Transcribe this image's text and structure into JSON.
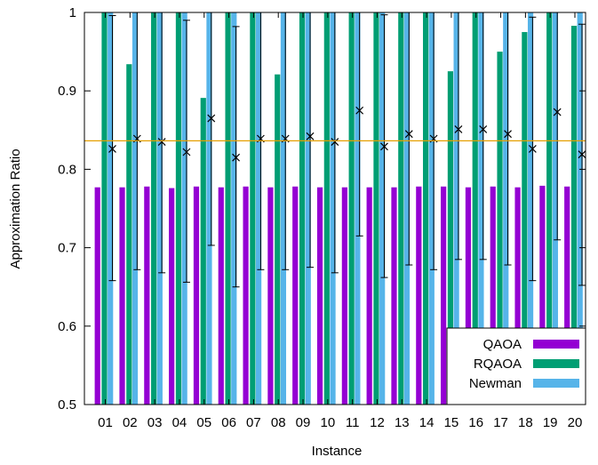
{
  "chart_data": {
    "type": "bar",
    "xlabel": "Instance",
    "ylabel": "Approximation Ratio",
    "ylim": [
      0.5,
      1.0
    ],
    "yticks": [
      "0.5",
      "0.6",
      "0.7",
      "0.8",
      "0.9",
      "1"
    ],
    "categories": [
      "01",
      "02",
      "03",
      "04",
      "05",
      "06",
      "07",
      "08",
      "09",
      "10",
      "11",
      "12",
      "13",
      "14",
      "15",
      "16",
      "17",
      "18",
      "19",
      "20"
    ],
    "series": [
      {
        "name": "QAOA",
        "color": "#9400d3",
        "values": [
          0.777,
          0.777,
          0.778,
          0.776,
          0.778,
          0.777,
          0.778,
          0.777,
          0.778,
          0.777,
          0.777,
          0.777,
          0.777,
          0.778,
          0.778,
          0.777,
          0.778,
          0.777,
          0.779,
          0.778
        ]
      },
      {
        "name": "RQAOA",
        "color": "#009e73",
        "values": [
          1.0,
          0.934,
          1.0,
          1.0,
          0.891,
          1.0,
          1.0,
          0.921,
          1.0,
          1.0,
          1.0,
          1.0,
          1.0,
          1.0,
          0.925,
          1.0,
          0.95,
          0.975,
          1.0,
          0.983
        ]
      },
      {
        "name": "Newman",
        "color": "#56b4e9",
        "values": [
          1.0,
          1.0,
          1.0,
          1.0,
          1.0,
          1.0,
          1.0,
          1.0,
          1.0,
          1.0,
          1.0,
          1.0,
          1.0,
          1.0,
          1.0,
          1.0,
          1.0,
          1.0,
          1.0,
          1.0
        ]
      }
    ],
    "errorbars": {
      "color": "#000000",
      "mean": [
        0.826,
        0.839,
        0.835,
        0.822,
        0.865,
        0.815,
        0.839,
        0.839,
        0.842,
        0.835,
        0.875,
        0.829,
        0.845,
        0.839,
        0.851,
        0.851,
        0.845,
        0.826,
        0.873,
        0.819
      ],
      "low": [
        0.658,
        0.672,
        0.668,
        0.656,
        0.703,
        0.65,
        0.672,
        0.672,
        0.675,
        0.668,
        0.715,
        0.662,
        0.678,
        0.672,
        0.685,
        0.685,
        0.678,
        0.658,
        0.71,
        0.652
      ],
      "high": [
        0.996,
        1.0,
        1.0,
        0.99,
        1.0,
        0.982,
        1.0,
        1.0,
        1.0,
        1.0,
        1.0,
        0.997,
        1.0,
        1.0,
        1.0,
        1.0,
        1.0,
        0.994,
        1.0,
        0.985
      ]
    },
    "reference_line": {
      "value": 0.8363,
      "color": "#e69f00"
    },
    "legend": {
      "position": "bottom-right"
    },
    "grid": false
  }
}
